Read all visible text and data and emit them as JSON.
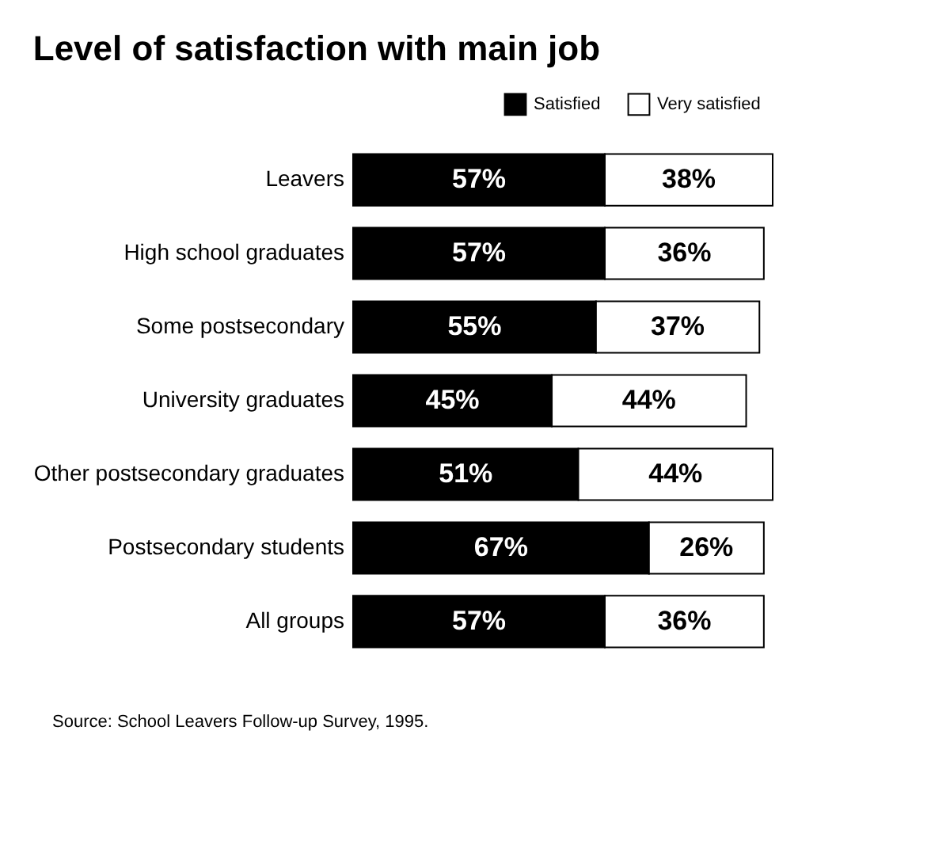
{
  "chart_data": {
    "type": "bar",
    "orientation": "horizontal",
    "stacked": true,
    "title": "Level of satisfaction with main job",
    "categories": [
      "Leavers",
      "High school graduates",
      "Some postsecondary",
      "University graduates",
      "Other postsecondary graduates",
      "Postsecondary students",
      "All groups"
    ],
    "series": [
      {
        "name": "Satisfied",
        "color": "#000000",
        "values": [
          57,
          57,
          55,
          45,
          51,
          67,
          57
        ],
        "value_labels": [
          "57%",
          "57%",
          "55%",
          "45%",
          "51%",
          "67%",
          "57%"
        ]
      },
      {
        "name": "Very satisfied",
        "color": "#ffffff",
        "values": [
          38,
          36,
          37,
          44,
          44,
          26,
          36
        ],
        "value_labels": [
          "38%",
          "36%",
          "37%",
          "44%",
          "44%",
          "26%",
          "36%"
        ]
      }
    ],
    "legend": "top right",
    "annotations": [
      "Source:  School Leavers Follow-up Survey, 1995."
    ]
  }
}
